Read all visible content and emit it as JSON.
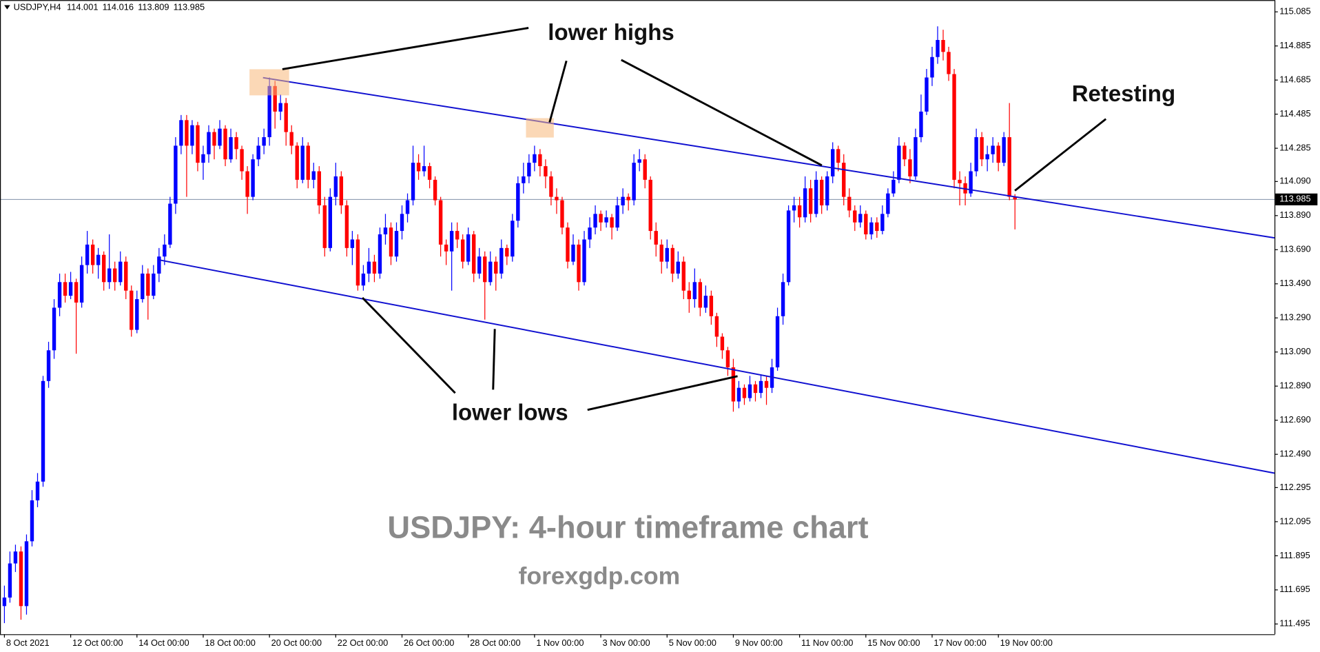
{
  "chart_data": {
    "type": "candlestick",
    "symbol": "USDJPY,H4",
    "title": "USDJPY: 4-hour timeframe chart",
    "subtitle": "forexgdp.com",
    "annotations": {
      "lower_highs": "lower highs",
      "lower_lows": "lower lows",
      "retesting": "Retesting"
    },
    "up_color": "#0000ff",
    "down_color": "#ff0000",
    "xlim": [
      -0.8,
      230
    ],
    "xticks": [
      {
        "value": 0,
        "label": "8 Oct 2021"
      },
      {
        "value": 12,
        "label": "12 Oct 00:00"
      },
      {
        "value": 24,
        "label": "14 Oct 00:00"
      },
      {
        "value": 36,
        "label": "18 Oct 00:00"
      },
      {
        "value": 48,
        "label": "20 Oct 00:00"
      },
      {
        "value": 60,
        "label": "22 Oct 00:00"
      },
      {
        "value": 72,
        "label": "26 Oct 00:00"
      },
      {
        "value": 84,
        "label": "28 Oct 00:00"
      },
      {
        "value": 96,
        "label": "1 Nov 00:00"
      },
      {
        "value": 108,
        "label": "3 Nov 00:00"
      },
      {
        "value": 120,
        "label": "5 Nov 00:00"
      },
      {
        "value": 132,
        "label": "9 Nov 00:00"
      },
      {
        "value": 144,
        "label": "11 Nov 00:00"
      },
      {
        "value": 156,
        "label": "15 Nov 00:00"
      },
      {
        "value": 168,
        "label": "17 Nov 00:00"
      },
      {
        "value": 180,
        "label": "19 Nov 00:00"
      }
    ],
    "ylim": [
      111.435,
      115.154
    ],
    "yticks": [
      115.085,
      114.885,
      114.685,
      114.485,
      114.285,
      {
        "value": 114.09,
        "label": "114.090"
      },
      {
        "value": 113.89,
        "label": "113.890"
      },
      {
        "value": 113.69,
        "label": "113.690"
      },
      {
        "value": 113.49,
        "label": "113.490"
      },
      {
        "value": 113.29,
        "label": "113.290"
      },
      {
        "value": 113.09,
        "label": "113.090"
      },
      {
        "value": 112.89,
        "label": "112.890"
      },
      {
        "value": 112.69,
        "label": "112.690"
      },
      {
        "value": 112.49,
        "label": "112.490"
      },
      112.295,
      112.095,
      111.895,
      111.695,
      111.495
    ],
    "candles": [
      [
        111.6,
        111.72,
        111.5,
        111.65
      ],
      [
        111.65,
        111.92,
        111.62,
        111.85
      ],
      [
        111.85,
        111.96,
        111.8,
        111.92
      ],
      [
        111.92,
        111.95,
        111.52,
        111.6
      ],
      [
        111.6,
        112.02,
        111.55,
        111.98
      ],
      [
        111.98,
        112.28,
        111.95,
        112.22
      ],
      [
        112.22,
        112.38,
        112.18,
        112.33
      ],
      [
        112.33,
        112.95,
        112.3,
        112.92
      ],
      [
        112.92,
        113.15,
        112.88,
        113.1
      ],
      [
        113.1,
        113.4,
        113.05,
        113.35
      ],
      [
        113.35,
        113.55,
        113.3,
        113.5
      ],
      [
        113.5,
        113.55,
        113.38,
        113.42
      ],
      [
        113.42,
        113.56,
        113.4,
        113.5
      ],
      [
        113.5,
        113.52,
        113.08,
        113.38
      ],
      [
        113.38,
        113.65,
        113.35,
        113.6
      ],
      [
        113.6,
        113.8,
        113.55,
        113.72
      ],
      [
        113.72,
        113.75,
        113.55,
        113.6
      ],
      [
        113.6,
        113.7,
        113.52,
        113.66
      ],
      [
        113.66,
        113.68,
        113.45,
        113.5
      ],
      [
        113.5,
        113.78,
        113.46,
        113.58
      ],
      [
        113.58,
        113.62,
        113.45,
        113.5
      ],
      [
        113.5,
        113.68,
        113.48,
        113.62
      ],
      [
        113.62,
        113.65,
        113.4,
        113.45
      ],
      [
        113.45,
        113.48,
        113.18,
        113.22
      ],
      [
        113.22,
        113.45,
        113.2,
        113.4
      ],
      [
        113.4,
        113.6,
        113.38,
        113.55
      ],
      [
        113.55,
        113.58,
        113.28,
        113.42
      ],
      [
        113.42,
        113.6,
        113.4,
        113.55
      ],
      [
        113.55,
        113.7,
        113.5,
        113.65
      ],
      [
        113.65,
        113.78,
        113.6,
        113.72
      ],
      [
        113.72,
        114.0,
        113.7,
        113.96
      ],
      [
        113.96,
        114.35,
        113.9,
        114.3
      ],
      [
        114.3,
        114.48,
        114.25,
        114.45
      ],
      [
        114.45,
        114.48,
        114.0,
        114.3
      ],
      [
        114.3,
        114.45,
        114.25,
        114.42
      ],
      [
        114.42,
        114.44,
        114.15,
        114.2
      ],
      [
        114.2,
        114.3,
        114.1,
        114.25
      ],
      [
        114.25,
        114.42,
        114.2,
        114.38
      ],
      [
        114.38,
        114.4,
        114.22,
        114.3
      ],
      [
        114.3,
        114.45,
        114.28,
        114.4
      ],
      [
        114.4,
        114.42,
        114.18,
        114.22
      ],
      [
        114.22,
        114.4,
        114.2,
        114.35
      ],
      [
        114.35,
        114.38,
        114.22,
        114.28
      ],
      [
        114.28,
        114.3,
        114.1,
        114.15
      ],
      [
        114.15,
        114.18,
        113.9,
        114.0
      ],
      [
        114.0,
        114.25,
        113.98,
        114.22
      ],
      [
        114.22,
        114.35,
        114.18,
        114.3
      ],
      [
        114.3,
        114.4,
        114.25,
        114.35
      ],
      [
        114.35,
        114.7,
        114.3,
        114.65
      ],
      [
        114.65,
        114.68,
        114.4,
        114.5
      ],
      [
        114.5,
        114.6,
        114.45,
        114.55
      ],
      [
        114.55,
        114.58,
        114.3,
        114.38
      ],
      [
        114.38,
        114.42,
        114.25,
        114.3
      ],
      [
        114.3,
        114.32,
        114.05,
        114.1
      ],
      [
        114.1,
        114.35,
        114.08,
        114.3
      ],
      [
        114.3,
        114.32,
        114.05,
        114.1
      ],
      [
        114.1,
        114.2,
        114.05,
        114.15
      ],
      [
        114.15,
        114.18,
        113.9,
        113.95
      ],
      [
        113.95,
        114.0,
        113.65,
        113.7
      ],
      [
        113.7,
        114.05,
        113.68,
        114.0
      ],
      [
        114.0,
        114.2,
        113.95,
        114.12
      ],
      [
        114.12,
        114.15,
        113.9,
        113.95
      ],
      [
        113.95,
        113.98,
        113.65,
        113.7
      ],
      [
        113.7,
        113.8,
        113.6,
        113.75
      ],
      [
        113.75,
        113.78,
        113.45,
        113.48
      ],
      [
        113.48,
        113.6,
        113.45,
        113.55
      ],
      [
        113.55,
        113.7,
        113.5,
        113.62
      ],
      [
        113.62,
        113.66,
        113.5,
        113.55
      ],
      [
        113.55,
        113.82,
        113.52,
        113.78
      ],
      [
        113.78,
        113.9,
        113.72,
        113.82
      ],
      [
        113.82,
        113.85,
        113.6,
        113.65
      ],
      [
        113.65,
        113.85,
        113.62,
        113.8
      ],
      [
        113.8,
        113.95,
        113.75,
        113.9
      ],
      [
        113.9,
        114.02,
        113.85,
        113.98
      ],
      [
        113.98,
        114.3,
        113.95,
        114.2
      ],
      [
        114.2,
        114.25,
        114.1,
        114.15
      ],
      [
        114.15,
        114.3,
        114.12,
        114.18
      ],
      [
        114.18,
        114.2,
        114.05,
        114.1
      ],
      [
        114.1,
        114.12,
        113.95,
        113.98
      ],
      [
        113.98,
        114.0,
        113.65,
        113.72
      ],
      [
        113.72,
        113.75,
        113.6,
        113.68
      ],
      [
        113.68,
        113.85,
        113.45,
        113.8
      ],
      [
        113.8,
        113.85,
        113.7,
        113.75
      ],
      [
        113.75,
        113.78,
        113.58,
        113.62
      ],
      [
        113.62,
        113.82,
        113.6,
        113.78
      ],
      [
        113.78,
        113.8,
        113.5,
        113.55
      ],
      [
        113.55,
        113.7,
        113.52,
        113.65
      ],
      [
        113.65,
        113.68,
        113.28,
        113.5
      ],
      [
        113.5,
        113.68,
        113.48,
        113.62
      ],
      [
        113.62,
        113.65,
        113.45,
        113.55
      ],
      [
        113.55,
        113.75,
        113.52,
        113.7
      ],
      [
        113.7,
        113.72,
        113.6,
        113.65
      ],
      [
        113.65,
        113.9,
        113.62,
        113.86
      ],
      [
        113.86,
        114.12,
        113.82,
        114.08
      ],
      [
        114.08,
        114.2,
        114.02,
        114.12
      ],
      [
        114.12,
        114.25,
        114.08,
        114.2
      ],
      [
        114.2,
        114.3,
        114.15,
        114.25
      ],
      [
        114.25,
        114.28,
        114.12,
        114.18
      ],
      [
        114.18,
        114.22,
        114.05,
        114.12
      ],
      [
        114.12,
        114.15,
        113.95,
        114.0
      ],
      [
        114.0,
        114.05,
        113.9,
        113.98
      ],
      [
        113.98,
        114.0,
        113.78,
        113.82
      ],
      [
        113.82,
        113.85,
        113.58,
        113.62
      ],
      [
        113.62,
        113.78,
        113.6,
        113.72
      ],
      [
        113.72,
        113.75,
        113.45,
        113.5
      ],
      [
        113.5,
        113.8,
        113.48,
        113.75
      ],
      [
        113.75,
        113.88,
        113.7,
        113.82
      ],
      [
        113.82,
        113.95,
        113.78,
        113.9
      ],
      [
        113.9,
        113.92,
        113.8,
        113.85
      ],
      [
        113.85,
        113.92,
        113.82,
        113.88
      ],
      [
        113.88,
        113.9,
        113.75,
        113.82
      ],
      [
        113.82,
        114.0,
        113.8,
        113.95
      ],
      [
        113.95,
        114.05,
        113.9,
        114.0
      ],
      [
        114.0,
        114.02,
        113.92,
        113.98
      ],
      [
        113.98,
        114.25,
        113.95,
        114.2
      ],
      [
        114.2,
        114.28,
        114.15,
        114.22
      ],
      [
        114.22,
        114.25,
        114.05,
        114.1
      ],
      [
        114.1,
        114.12,
        113.75,
        113.8
      ],
      [
        113.8,
        113.85,
        113.65,
        113.72
      ],
      [
        113.72,
        113.75,
        113.55,
        113.62
      ],
      [
        113.62,
        113.75,
        113.58,
        113.7
      ],
      [
        113.7,
        113.72,
        113.5,
        113.55
      ],
      [
        113.55,
        113.68,
        113.52,
        113.62
      ],
      [
        113.62,
        113.65,
        113.4,
        113.45
      ],
      [
        113.45,
        113.5,
        113.32,
        113.4
      ],
      [
        113.4,
        113.58,
        113.35,
        113.5
      ],
      [
        113.5,
        113.52,
        113.3,
        113.35
      ],
      [
        113.35,
        113.48,
        113.32,
        113.42
      ],
      [
        113.42,
        113.45,
        113.25,
        113.3
      ],
      [
        113.3,
        113.32,
        113.12,
        113.18
      ],
      [
        113.18,
        113.2,
        113.05,
        113.1
      ],
      [
        113.1,
        113.12,
        112.95,
        113.0
      ],
      [
        113.0,
        113.05,
        112.74,
        112.8
      ],
      [
        112.8,
        112.92,
        112.76,
        112.88
      ],
      [
        112.88,
        112.9,
        112.78,
        112.82
      ],
      [
        112.82,
        112.95,
        112.8,
        112.9
      ],
      [
        112.9,
        112.92,
        112.8,
        112.85
      ],
      [
        112.85,
        112.96,
        112.82,
        112.92
      ],
      [
        112.92,
        112.95,
        112.78,
        112.88
      ],
      [
        112.88,
        113.05,
        112.85,
        113.0
      ],
      [
        113.0,
        113.35,
        112.98,
        113.3
      ],
      [
        113.3,
        113.55,
        113.25,
        113.5
      ],
      [
        113.5,
        113.95,
        113.48,
        113.92
      ],
      [
        113.92,
        114.0,
        113.85,
        113.95
      ],
      [
        113.95,
        114.0,
        113.82,
        113.88
      ],
      [
        113.88,
        114.12,
        113.85,
        114.05
      ],
      [
        114.05,
        114.1,
        113.85,
        113.9
      ],
      [
        113.9,
        114.15,
        113.88,
        114.1
      ],
      [
        114.1,
        114.12,
        113.9,
        113.95
      ],
      [
        113.95,
        114.15,
        113.92,
        114.12
      ],
      [
        114.12,
        114.32,
        114.08,
        114.28
      ],
      [
        114.28,
        114.3,
        114.15,
        114.2
      ],
      [
        114.2,
        114.25,
        113.95,
        114.0
      ],
      [
        114.0,
        114.05,
        113.88,
        113.92
      ],
      [
        113.92,
        113.95,
        113.8,
        113.85
      ],
      [
        113.85,
        113.95,
        113.82,
        113.9
      ],
      [
        113.9,
        113.92,
        113.75,
        113.78
      ],
      [
        113.78,
        113.88,
        113.75,
        113.85
      ],
      [
        113.85,
        113.88,
        113.76,
        113.8
      ],
      [
        113.8,
        113.95,
        113.78,
        113.9
      ],
      [
        113.9,
        114.05,
        113.88,
        114.02
      ],
      [
        114.02,
        114.15,
        114.0,
        114.1
      ],
      [
        114.1,
        114.35,
        114.08,
        114.3
      ],
      [
        114.3,
        114.32,
        114.18,
        114.22
      ],
      [
        114.22,
        114.28,
        114.08,
        114.12
      ],
      [
        114.12,
        114.4,
        114.1,
        114.35
      ],
      [
        114.35,
        114.6,
        114.32,
        114.5
      ],
      [
        114.5,
        114.75,
        114.48,
        114.7
      ],
      [
        114.7,
        114.88,
        114.65,
        114.82
      ],
      [
        114.82,
        115.0,
        114.78,
        114.92
      ],
      [
        114.92,
        114.98,
        114.8,
        114.85
      ],
      [
        114.85,
        114.88,
        114.68,
        114.72
      ],
      [
        114.72,
        114.75,
        114.05,
        114.1
      ],
      [
        114.1,
        114.15,
        113.95,
        114.08
      ],
      [
        114.08,
        114.12,
        113.95,
        114.02
      ],
      [
        114.02,
        114.2,
        114.0,
        114.15
      ],
      [
        114.15,
        114.4,
        114.12,
        114.35
      ],
      [
        114.35,
        114.38,
        114.18,
        114.22
      ],
      [
        114.22,
        114.3,
        114.15,
        114.25
      ],
      [
        114.25,
        114.35,
        114.2,
        114.3
      ],
      [
        114.3,
        114.32,
        114.15,
        114.2
      ],
      [
        114.2,
        114.38,
        114.18,
        114.35
      ],
      [
        114.35,
        114.55,
        113.98,
        114.0
      ],
      [
        114.001,
        114.016,
        113.809,
        113.985
      ]
    ]
  }
}
